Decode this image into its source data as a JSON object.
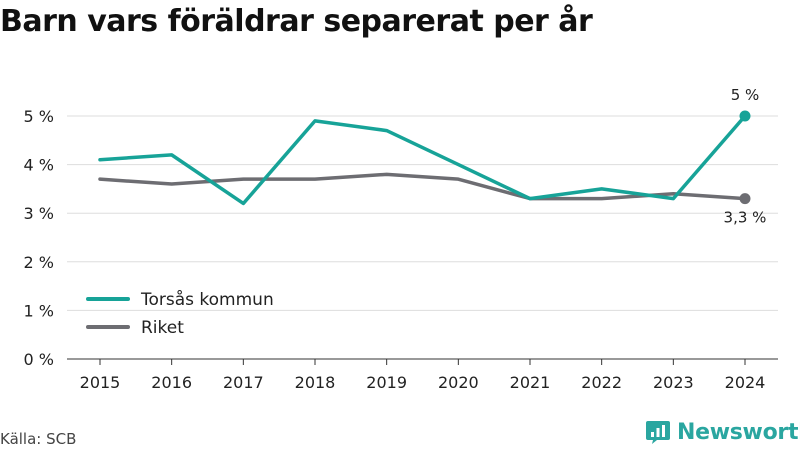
{
  "title": "Barn vars föräldrar separerat per år",
  "source": "Källa: SCB",
  "brand": {
    "name": "Newsworthy",
    "icon": "newsworthy-logo-icon",
    "color": "#2aa6a0"
  },
  "chart_data": {
    "type": "line",
    "x": [
      2015,
      2016,
      2017,
      2018,
      2019,
      2020,
      2021,
      2022,
      2023,
      2024
    ],
    "y_ticks": [
      0,
      1,
      2,
      3,
      4,
      5
    ],
    "y_tick_labels": [
      "0 %",
      "1 %",
      "2 %",
      "3 %",
      "4 %",
      "5 %"
    ],
    "ylim": [
      0,
      5
    ],
    "grid": "horizontal",
    "legend_position": "bottom-left",
    "series": [
      {
        "name": "Torsås kommun",
        "color": "#17a398",
        "values": [
          4.1,
          4.2,
          3.2,
          4.9,
          4.7,
          4.0,
          3.3,
          3.5,
          3.3,
          5.0
        ],
        "end_label": "5 %"
      },
      {
        "name": "Riket",
        "color": "#6d6d72",
        "values": [
          3.7,
          3.6,
          3.7,
          3.7,
          3.8,
          3.7,
          3.3,
          3.3,
          3.4,
          3.3
        ],
        "end_label": "3,3 %"
      }
    ]
  }
}
